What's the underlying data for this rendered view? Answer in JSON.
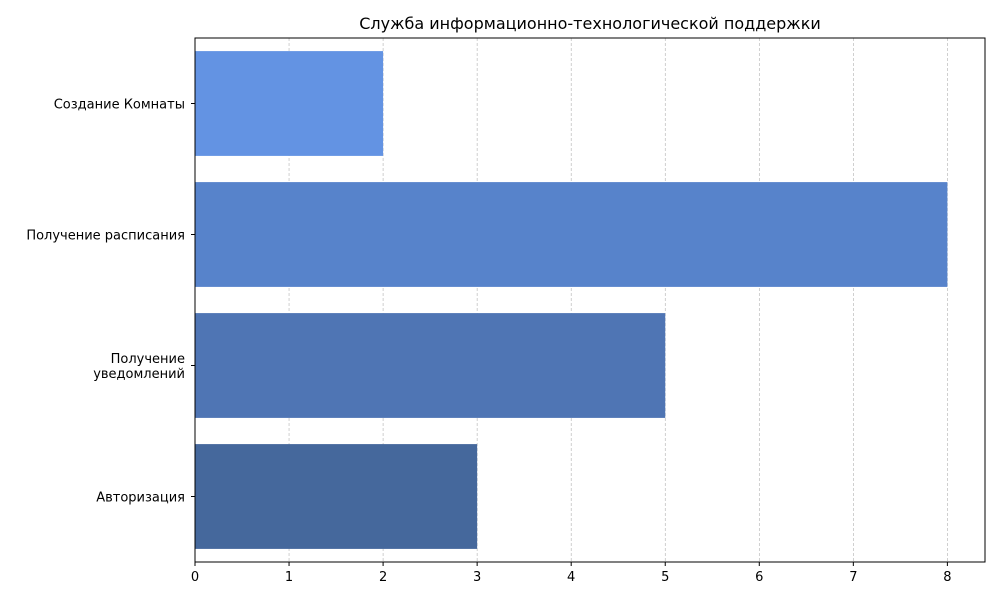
{
  "chart_data": {
    "type": "bar",
    "orientation": "horizontal",
    "title": "Служба информационно-технологической поддержки",
    "xlabel": "",
    "ylabel": "",
    "categories": [
      "Авторизация",
      "Получение\nуведомлений",
      "Получение расписания",
      "Создание Комнаты"
    ],
    "values": [
      3,
      5,
      8,
      2
    ],
    "bar_colors": [
      "#45689c",
      "#4f75b4",
      "#5783cb",
      "#6393e3"
    ],
    "xlim": [
      0,
      8.4
    ],
    "xticks": [
      0,
      1,
      2,
      3,
      4,
      5,
      6,
      7,
      8
    ],
    "grid": "x-dashed",
    "grid_color": "#b0b0b0",
    "legend": "none"
  }
}
